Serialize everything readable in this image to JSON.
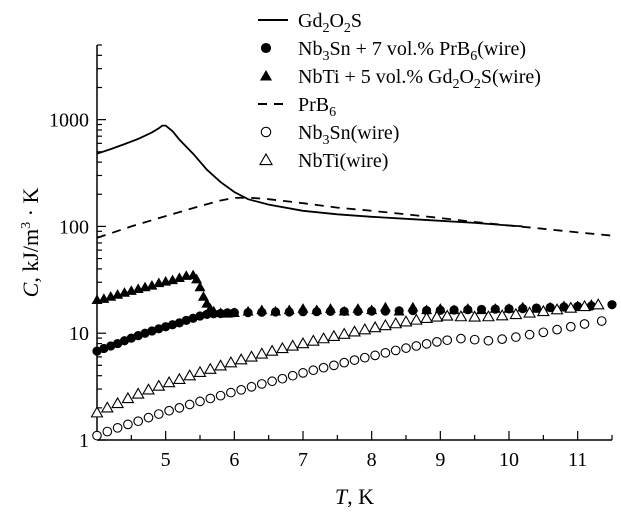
{
  "chart_data": {
    "type": "scatter",
    "xlabel": "T, K",
    "ylabel": "C, kJ/m3 · K",
    "xlim": [
      4,
      11.5
    ],
    "ylim": [
      1,
      5000
    ],
    "yscale": "log",
    "xticks": [
      5,
      6,
      7,
      8,
      9,
      10,
      11
    ],
    "yticks": [
      1,
      10,
      100,
      1000
    ],
    "grid": false,
    "legend_position": "top-right",
    "series": [
      {
        "name": "Gd2O2S",
        "marker": "line-solid",
        "x": [
          4.0,
          4.2,
          4.4,
          4.6,
          4.8,
          4.9,
          4.95,
          5.0,
          5.1,
          5.2,
          5.4,
          5.6,
          5.8,
          6.0,
          6.2,
          6.5,
          7.0,
          7.5,
          8.0,
          8.5,
          9.0,
          9.5,
          10.0,
          10.2
        ],
        "y": [
          480,
          530,
          590,
          660,
          760,
          830,
          880,
          880,
          780,
          650,
          480,
          340,
          260,
          210,
          180,
          160,
          140,
          130,
          123,
          118,
          113,
          108,
          102,
          100
        ]
      },
      {
        "name": "Nb3Sn + 7 vol.% PrB6(wire)",
        "marker": "circle-filled",
        "x": [
          4.0,
          4.1,
          4.2,
          4.3,
          4.4,
          4.5,
          4.6,
          4.7,
          4.8,
          4.9,
          5.0,
          5.1,
          5.2,
          5.3,
          5.4,
          5.5,
          5.6,
          5.7,
          5.8,
          5.9,
          6.0,
          6.2,
          6.4,
          6.6,
          6.8,
          7.0,
          7.2,
          7.4,
          7.6,
          7.8,
          8.0,
          8.2,
          8.4,
          8.6,
          8.8,
          9.0,
          9.2,
          9.4,
          9.6,
          9.8,
          10.0,
          10.2,
          10.4,
          10.6,
          10.8,
          11.0,
          11.2,
          11.5
        ],
        "y": [
          6.8,
          7.2,
          7.6,
          8.0,
          8.5,
          9.0,
          9.5,
          10.0,
          10.5,
          11.0,
          11.5,
          12.0,
          12.5,
          13.2,
          13.8,
          14.5,
          15.0,
          15.2,
          15.3,
          15.5,
          15.6,
          15.6,
          15.7,
          15.8,
          15.8,
          15.9,
          15.9,
          16.0,
          16.0,
          16.0,
          16.1,
          16.1,
          16.2,
          16.3,
          16.3,
          16.4,
          16.5,
          16.6,
          16.7,
          16.8,
          16.9,
          17.0,
          17.2,
          17.4,
          17.6,
          17.8,
          18.0,
          18.5
        ]
      },
      {
        "name": "NbTi + 5 vol.% Gd2O2S(wire)",
        "marker": "triangle-filled",
        "x": [
          4.0,
          4.1,
          4.2,
          4.3,
          4.4,
          4.5,
          4.6,
          4.7,
          4.8,
          4.9,
          5.0,
          5.1,
          5.2,
          5.3,
          5.4,
          5.45,
          5.5,
          5.55,
          5.6,
          5.65,
          5.7,
          5.8,
          5.9,
          6.0,
          6.2,
          6.4,
          6.6,
          6.8,
          7.0,
          7.2,
          7.4,
          7.6,
          7.8,
          8.0,
          8.2,
          8.4,
          8.6,
          8.8,
          9.0,
          9.2,
          9.4,
          9.6,
          9.8,
          10.0,
          10.2,
          10.4,
          10.6,
          10.8,
          11.0,
          11.2
        ],
        "y": [
          20.5,
          21.0,
          22.0,
          23.0,
          24.0,
          25.0,
          26.0,
          27.0,
          28.0,
          29.5,
          30.5,
          31.5,
          33.0,
          34.5,
          35.0,
          32.0,
          27.0,
          22.0,
          19.0,
          17.0,
          16.0,
          15.5,
          15.3,
          15.5,
          16.0,
          16.5,
          16.0,
          16.5,
          17.0,
          16.5,
          17.0,
          16.0,
          17.0,
          16.5,
          17.5,
          16.0,
          17.5,
          16.5,
          17.0,
          16.5,
          17.0,
          16.5,
          17.0,
          17.0,
          17.5,
          17.0,
          17.5,
          18.0,
          18.0,
          18.5
        ]
      },
      {
        "name": "PrB6",
        "marker": "line-dashed",
        "x": [
          4.0,
          4.5,
          5.0,
          5.5,
          5.8,
          6.0,
          6.2,
          6.5,
          7.0,
          7.5,
          8.0,
          8.5,
          9.0,
          9.5,
          10.0,
          10.5,
          11.0,
          11.5
        ],
        "y": [
          78,
          100,
          125,
          155,
          175,
          185,
          186,
          180,
          165,
          150,
          140,
          130,
          120,
          110,
          102,
          95,
          88,
          82
        ]
      },
      {
        "name": "Nb3Sn(wire)",
        "marker": "circle-open",
        "x": [
          4.0,
          4.15,
          4.3,
          4.45,
          4.6,
          4.75,
          4.9,
          5.05,
          5.2,
          5.35,
          5.5,
          5.65,
          5.8,
          5.95,
          6.1,
          6.25,
          6.4,
          6.55,
          6.7,
          6.85,
          7.0,
          7.15,
          7.3,
          7.45,
          7.6,
          7.75,
          7.9,
          8.05,
          8.2,
          8.35,
          8.5,
          8.65,
          8.8,
          8.95,
          9.1,
          9.3,
          9.5,
          9.7,
          9.9,
          10.1,
          10.3,
          10.5,
          10.7,
          10.9,
          11.1,
          11.35
        ],
        "y": [
          1.1,
          1.2,
          1.3,
          1.4,
          1.5,
          1.62,
          1.75,
          1.88,
          2.0,
          2.15,
          2.3,
          2.45,
          2.6,
          2.78,
          2.95,
          3.15,
          3.35,
          3.55,
          3.75,
          4.0,
          4.25,
          4.5,
          4.75,
          5.0,
          5.3,
          5.6,
          5.9,
          6.2,
          6.55,
          6.9,
          7.25,
          7.6,
          7.95,
          8.3,
          8.6,
          8.9,
          8.7,
          8.5,
          8.8,
          9.2,
          9.7,
          10.2,
          10.8,
          11.5,
          12.2,
          13.0
        ]
      },
      {
        "name": "NbTi(wire)",
        "marker": "triangle-open",
        "x": [
          4.0,
          4.15,
          4.3,
          4.45,
          4.6,
          4.75,
          4.9,
          5.05,
          5.2,
          5.35,
          5.5,
          5.65,
          5.8,
          5.95,
          6.1,
          6.25,
          6.4,
          6.55,
          6.7,
          6.85,
          7.0,
          7.15,
          7.3,
          7.45,
          7.6,
          7.75,
          7.9,
          8.05,
          8.2,
          8.35,
          8.5,
          8.65,
          8.8,
          8.95,
          9.1,
          9.3,
          9.5,
          9.7,
          9.9,
          10.1,
          10.3,
          10.5,
          10.7,
          10.9,
          11.1,
          11.3
        ],
        "y": [
          1.8,
          2.0,
          2.2,
          2.45,
          2.7,
          2.95,
          3.2,
          3.45,
          3.7,
          4.0,
          4.3,
          4.6,
          4.95,
          5.3,
          5.65,
          6.0,
          6.4,
          6.8,
          7.2,
          7.6,
          8.0,
          8.45,
          8.9,
          9.35,
          9.8,
          10.3,
          10.8,
          11.3,
          11.8,
          12.3,
          12.8,
          13.3,
          13.8,
          14.2,
          14.5,
          14.3,
          14.2,
          14.3,
          14.6,
          15.0,
          15.5,
          16.0,
          16.6,
          17.2,
          17.8,
          18.5
        ]
      }
    ]
  }
}
